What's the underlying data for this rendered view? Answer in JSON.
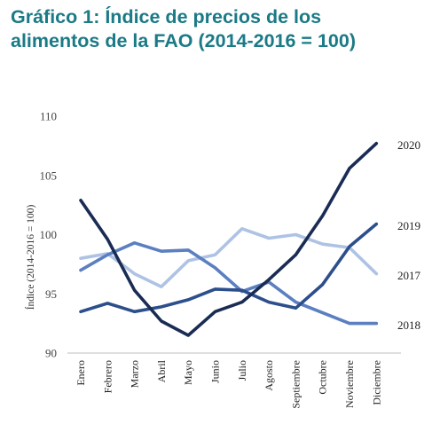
{
  "title_lines": [
    "Gráfico 1: Índice de precios de los",
    "alimentos de la FAO (2014-2016 = 100)"
  ],
  "chart_data": {
    "type": "line",
    "title": "Gráfico 1: Índice de precios de los alimentos de la FAO (2014-2016 = 100)",
    "xlabel": "",
    "ylabel": "Índice (2014-2016 = 100)",
    "ylim": [
      90,
      110
    ],
    "yticks": [
      90,
      95,
      100,
      105,
      110
    ],
    "grid": false,
    "categories": [
      "Enero",
      "Febrero",
      "Marzo",
      "Abril",
      "Mayo",
      "Junio",
      "Julio",
      "Agosto",
      "Septiembre",
      "Octubre",
      "Noviembre",
      "Diciembre"
    ],
    "series": [
      {
        "name": "2017",
        "color": "#aec3e4",
        "values": [
          98.0,
          98.4,
          96.7,
          95.6,
          97.8,
          98.3,
          100.5,
          99.7,
          100.0,
          99.2,
          98.9,
          96.7
        ]
      },
      {
        "name": "2018",
        "color": "#5b7fc0",
        "values": [
          97.0,
          98.3,
          99.3,
          98.6,
          98.7,
          97.2,
          95.2,
          96.0,
          94.3,
          93.4,
          92.5,
          92.5
        ]
      },
      {
        "name": "2019",
        "color": "#2c4f8c",
        "values": [
          93.5,
          94.2,
          93.5,
          93.9,
          94.5,
          95.4,
          95.3,
          94.3,
          93.8,
          95.8,
          99.0,
          100.9
        ]
      },
      {
        "name": "2020",
        "color": "#1a2c54",
        "values": [
          102.9,
          99.6,
          95.3,
          92.7,
          91.5,
          93.5,
          94.3,
          96.2,
          98.3,
          101.6,
          105.6,
          107.7
        ]
      }
    ],
    "series_label_order": [
      "2020",
      "2019",
      "2017",
      "2018"
    ]
  }
}
